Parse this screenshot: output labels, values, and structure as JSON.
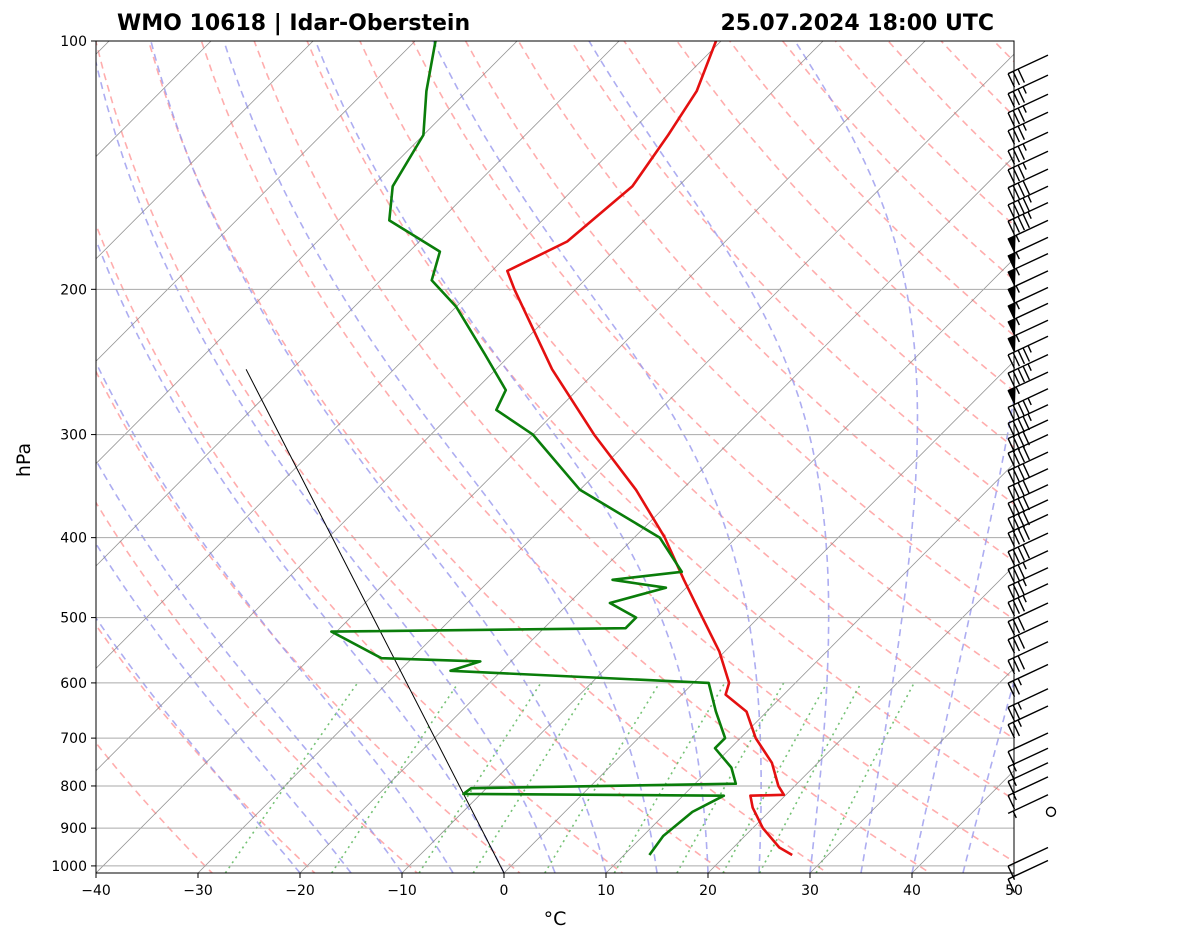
{
  "chart_data": {
    "type": "skew-t",
    "title_left": "WMO 10618 | Idar-Oberstein",
    "title_right": "25.07.2024 18:00 UTC",
    "xlabel": "°C",
    "ylabel": "hPa",
    "xlim": [
      -40,
      50
    ],
    "ylim": [
      1020,
      100
    ],
    "xticks": [
      -40,
      -30,
      -20,
      -10,
      0,
      10,
      20,
      30,
      40,
      50
    ],
    "xtick_labels": [
      "−40",
      "−30",
      "−20",
      "−10",
      "0",
      "10",
      "20",
      "30",
      "40",
      "50"
    ],
    "yticks": [
      100,
      200,
      300,
      400,
      500,
      600,
      700,
      800,
      900,
      1000
    ],
    "ytick_labels": [
      "100",
      "200",
      "300",
      "400",
      "500",
      "600",
      "700",
      "800",
      "900",
      "1000"
    ],
    "colors": {
      "temperature": "#e41010",
      "dewpoint": "#0a7d0a",
      "dry_adiabats": "#ff9999",
      "moist_adiabats": "#9999ee",
      "mixing_ratio": "#66bb66",
      "isotherms": "#888888",
      "grid": "#aaaaaa"
    },
    "temperature_profile": [
      {
        "p": 970,
        "t": 26.5
      },
      {
        "p": 950,
        "t": 24.5
      },
      {
        "p": 900,
        "t": 21.0
      },
      {
        "p": 850,
        "t": 18.0
      },
      {
        "p": 822,
        "t": 16.6
      },
      {
        "p": 820,
        "t": 19.8
      },
      {
        "p": 800,
        "t": 18.4
      },
      {
        "p": 750,
        "t": 15.5
      },
      {
        "p": 700,
        "t": 11.5
      },
      {
        "p": 650,
        "t": 8.0
      },
      {
        "p": 620,
        "t": 4.3
      },
      {
        "p": 600,
        "t": 3.5
      },
      {
        "p": 550,
        "t": -0.5
      },
      {
        "p": 500,
        "t": -5.5
      },
      {
        "p": 450,
        "t": -11.0
      },
      {
        "p": 400,
        "t": -17.0
      },
      {
        "p": 350,
        "t": -24.5
      },
      {
        "p": 300,
        "t": -34.0
      },
      {
        "p": 250,
        "t": -44.5
      },
      {
        "p": 200,
        "t": -56.0
      },
      {
        "p": 190,
        "t": -58.5
      },
      {
        "p": 175,
        "t": -55.5
      },
      {
        "p": 150,
        "t": -54.5
      },
      {
        "p": 130,
        "t": -56.0
      },
      {
        "p": 115,
        "t": -57.5
      },
      {
        "p": 100,
        "t": -60.5
      }
    ],
    "dewpoint_profile": [
      {
        "p": 970,
        "t": 12.5
      },
      {
        "p": 920,
        "t": 12.0
      },
      {
        "p": 860,
        "t": 12.5
      },
      {
        "p": 822,
        "t": 14.0
      },
      {
        "p": 818,
        "t": -11.7
      },
      {
        "p": 805,
        "t": -11.5
      },
      {
        "p": 795,
        "t": 14.0
      },
      {
        "p": 760,
        "t": 12.0
      },
      {
        "p": 720,
        "t": 8.5
      },
      {
        "p": 700,
        "t": 8.5
      },
      {
        "p": 650,
        "t": 5.0
      },
      {
        "p": 600,
        "t": 1.5
      },
      {
        "p": 580,
        "t": -25.0
      },
      {
        "p": 565,
        "t": -23.0
      },
      {
        "p": 560,
        "t": -33.0
      },
      {
        "p": 520,
        "t": -40.5
      },
      {
        "p": 515,
        "t": -12.0
      },
      {
        "p": 500,
        "t": -12.0
      },
      {
        "p": 480,
        "t": -16.0
      },
      {
        "p": 460,
        "t": -12.0
      },
      {
        "p": 450,
        "t": -18.0
      },
      {
        "p": 440,
        "t": -12.0
      },
      {
        "p": 400,
        "t": -17.5
      },
      {
        "p": 350,
        "t": -30.0
      },
      {
        "p": 300,
        "t": -40.0
      },
      {
        "p": 280,
        "t": -46.0
      },
      {
        "p": 265,
        "t": -47.0
      },
      {
        "p": 240,
        "t": -52.5
      },
      {
        "p": 210,
        "t": -60.0
      },
      {
        "p": 195,
        "t": -65.0
      },
      {
        "p": 180,
        "t": -67.0
      },
      {
        "p": 165,
        "t": -75.0
      },
      {
        "p": 150,
        "t": -78.0
      },
      {
        "p": 130,
        "t": -80.0
      },
      {
        "p": 115,
        "t": -84.0
      },
      {
        "p": 100,
        "t": -88.0
      }
    ],
    "parcel_line": [
      {
        "p": 1020,
        "t": 0.0
      },
      {
        "p": 250,
        "t": -74.5
      }
    ],
    "wind_barbs": [
      {
        "p": 985,
        "kt": 10
      },
      {
        "p": 950,
        "kt": 10
      },
      {
        "p": 860,
        "kt": 0
      },
      {
        "p": 820,
        "kt": 5
      },
      {
        "p": 780,
        "kt": 15
      },
      {
        "p": 750,
        "kt": 15
      },
      {
        "p": 720,
        "kt": 15
      },
      {
        "p": 690,
        "kt": 10
      },
      {
        "p": 640,
        "kt": 25
      },
      {
        "p": 610,
        "kt": 25
      },
      {
        "p": 570,
        "kt": 25
      },
      {
        "p": 535,
        "kt": 30
      },
      {
        "p": 505,
        "kt": 30
      },
      {
        "p": 480,
        "kt": 30
      },
      {
        "p": 455,
        "kt": 35
      },
      {
        "p": 435,
        "kt": 35
      },
      {
        "p": 415,
        "kt": 35
      },
      {
        "p": 395,
        "kt": 40
      },
      {
        "p": 375,
        "kt": 40
      },
      {
        "p": 360,
        "kt": 40
      },
      {
        "p": 345,
        "kt": 40
      },
      {
        "p": 330,
        "kt": 40
      },
      {
        "p": 315,
        "kt": 40
      },
      {
        "p": 300,
        "kt": 40
      },
      {
        "p": 288,
        "kt": 40
      },
      {
        "p": 276,
        "kt": 45
      },
      {
        "p": 264,
        "kt": 45
      },
      {
        "p": 252,
        "kt": 55
      },
      {
        "p": 240,
        "kt": 45
      },
      {
        "p": 228,
        "kt": 45
      },
      {
        "p": 218,
        "kt": 55
      },
      {
        "p": 208,
        "kt": 55
      },
      {
        "p": 199,
        "kt": 55
      },
      {
        "p": 190,
        "kt": 55
      },
      {
        "p": 181,
        "kt": 55
      },
      {
        "p": 173,
        "kt": 55
      },
      {
        "p": 165,
        "kt": 55
      },
      {
        "p": 157,
        "kt": 45
      },
      {
        "p": 150,
        "kt": 45
      },
      {
        "p": 143,
        "kt": 40
      },
      {
        "p": 136,
        "kt": 35
      },
      {
        "p": 129,
        "kt": 35
      },
      {
        "p": 122,
        "kt": 35
      },
      {
        "p": 116,
        "kt": 35
      },
      {
        "p": 110,
        "kt": 35
      },
      {
        "p": 104,
        "kt": 30
      }
    ]
  }
}
